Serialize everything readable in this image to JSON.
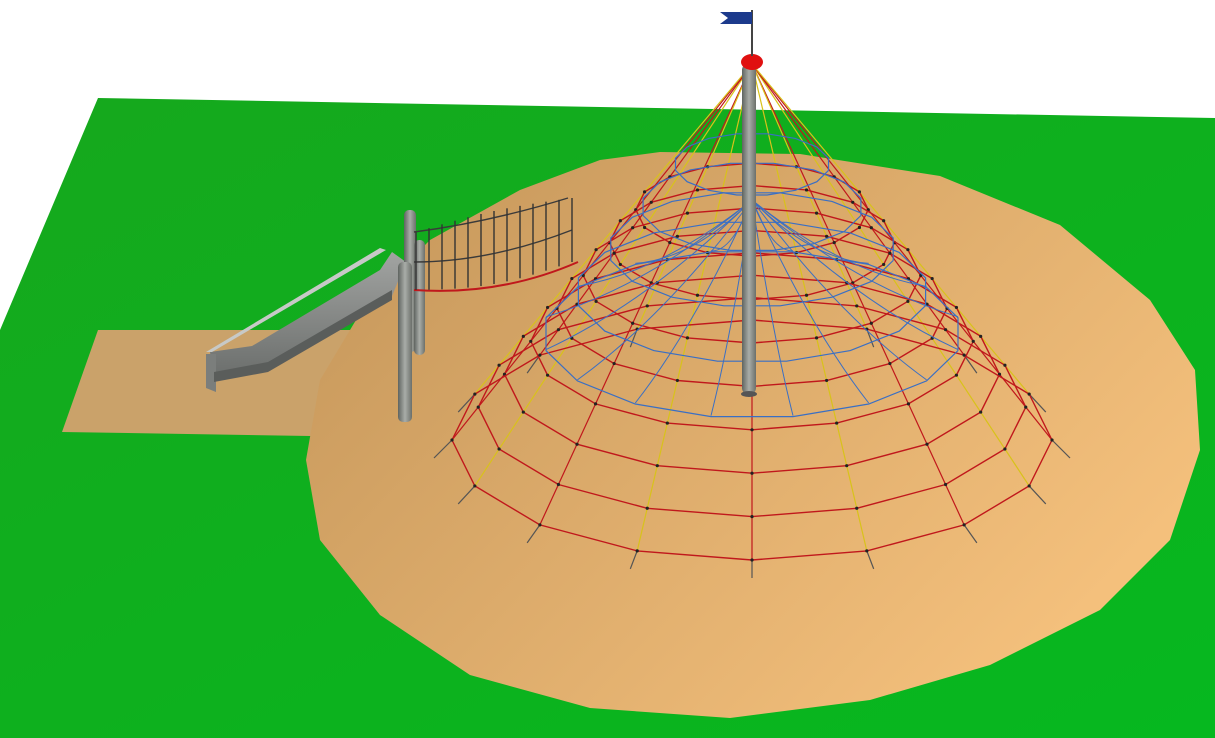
{
  "scene": {
    "description_hidden": "",
    "colors": {
      "background": "#ffffff",
      "grass_light": "#22c42a",
      "grass_dark": "#0f9a18",
      "sand_light": "#f2bf7c",
      "sand_dark": "#c4955b",
      "pole": "#8a8f8a",
      "rope_red": "#c0181c",
      "rope_blue": "#3a6fc4",
      "rope_yellow": "#d8c21a",
      "cap_red": "#e01010",
      "flag_blue": "#1c3a8c"
    },
    "objects": {
      "net_rings": 8,
      "net_spokes": 16,
      "inner_rings": 5
    }
  }
}
